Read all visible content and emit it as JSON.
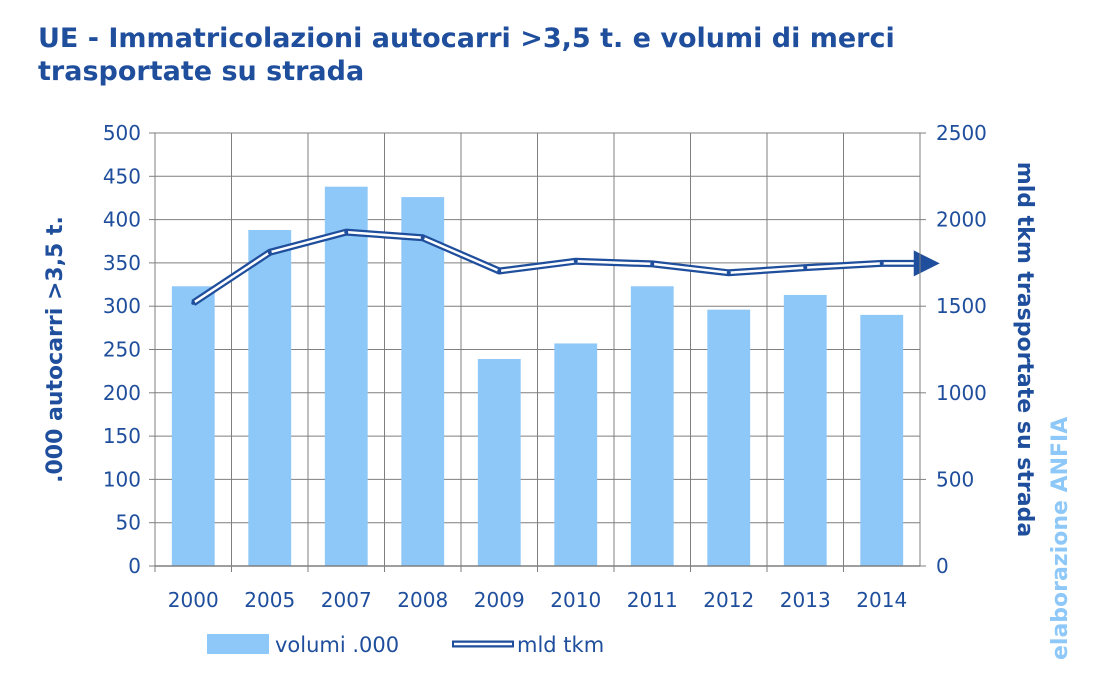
{
  "chart_data": {
    "type": "bar",
    "title": "UE - Immatricolazioni autocarri >3,5 t. e volumi di merci trasportate su strada",
    "categories": [
      "2000",
      "2005",
      "2007",
      "2008",
      "2009",
      "2010",
      "2011",
      "2012",
      "2013",
      "2014"
    ],
    "series": [
      {
        "name": "volumi .000",
        "type": "bar",
        "axis": "left",
        "color": "#8ec8f8",
        "values": [
          323,
          388,
          438,
          426,
          239,
          257,
          323,
          296,
          313,
          290
        ]
      },
      {
        "name": "mld tkm",
        "type": "line",
        "axis": "right",
        "color": "#1f4e9c",
        "values": [
          1519,
          1811,
          1928,
          1895,
          1703,
          1760,
          1744,
          1693,
          1723,
          1747
        ]
      }
    ],
    "ylabel": ".000 autocarri >3,5 t.",
    "ylabel_right": "mld tkm trasportate su strada",
    "ylim": [
      0,
      500
    ],
    "ylim_right": [
      0,
      2500
    ],
    "yticks": [
      "0",
      "50",
      "100",
      "150",
      "200",
      "250",
      "300",
      "350",
      "400",
      "450",
      "500"
    ],
    "yticks_right": [
      "0",
      "500",
      "1000",
      "1500",
      "2000",
      "2500"
    ],
    "grid": true,
    "legend_position": "bottom",
    "colors": {
      "text": "#1f4e9c",
      "bars": "#8ec8f8",
      "grid": "#7f7f7f",
      "credit": "#8ec8f8"
    }
  },
  "credit": "elaborazione ANFIA"
}
